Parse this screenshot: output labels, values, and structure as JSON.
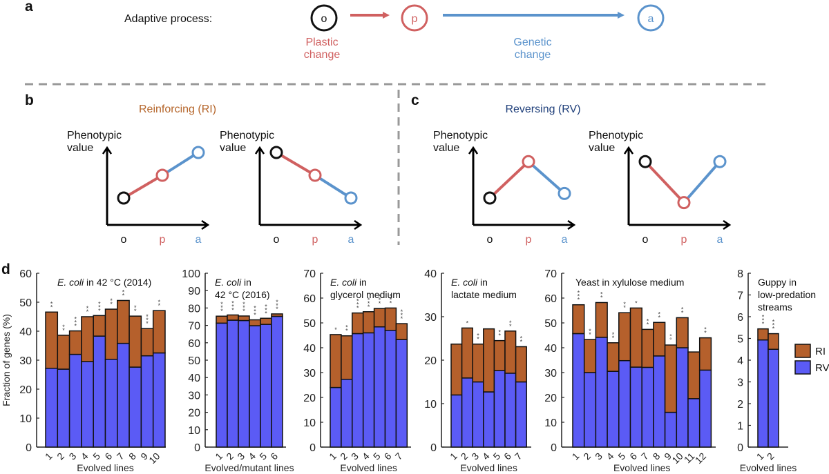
{
  "panel_a": {
    "label": "a",
    "title": "Adaptive process:",
    "nodes": [
      {
        "label": "o",
        "color": "#111111"
      },
      {
        "label": "p",
        "color": "#d06060"
      },
      {
        "label": "a",
        "color": "#5b93cc"
      }
    ],
    "plastic_change": [
      "Plastic",
      "change"
    ],
    "genetic_change": [
      "Genetic",
      "change"
    ]
  },
  "panel_b": {
    "label": "b",
    "title": "Reinforcing (RI)",
    "title_color": "#b5652a",
    "ylabel": [
      "Phenotypic",
      "value"
    ],
    "x_ticks": [
      "o",
      "p",
      "a"
    ],
    "plots": [
      {
        "name": "increasing",
        "values": [
          1,
          2,
          3
        ]
      },
      {
        "name": "decreasing",
        "values": [
          3,
          2,
          1
        ]
      }
    ]
  },
  "panel_c": {
    "label": "c",
    "title": "Reversing (RV)",
    "title_color": "#1f3f7a",
    "ylabel": [
      "Phenotypic",
      "value"
    ],
    "x_ticks": [
      "o",
      "p",
      "a"
    ],
    "plots": [
      {
        "name": "up-then-down",
        "values": [
          1,
          2.6,
          1.2
        ]
      },
      {
        "name": "down-then-up",
        "values": [
          2.6,
          0.8,
          2.6
        ]
      }
    ]
  },
  "panel_d": {
    "label": "d",
    "ylabel": "Fraction of genes (%)",
    "legend": [
      {
        "label": "RI",
        "color": "#b5602c"
      },
      {
        "label": "RV",
        "color": "#5b5bf5"
      }
    ],
    "legend_position": "right"
  },
  "chart_data": [
    {
      "type": "bar",
      "stacked": true,
      "title": "E. coli in 42 °C (2014)",
      "title_italic": "E. coli",
      "title_rest": " in 42 °C (2014)",
      "xlabel": "Evolved lines",
      "ylabel": "Fraction of genes (%)",
      "ylim": [
        0,
        60
      ],
      "yticks": [
        0,
        10,
        20,
        30,
        40,
        50,
        60
      ],
      "categories": [
        "1",
        "2",
        "3",
        "4",
        "5",
        "6",
        "7",
        "8",
        "9",
        "10"
      ],
      "series": [
        {
          "name": "RV",
          "values": [
            27.2,
            26.9,
            32.0,
            29.5,
            38.3,
            30.3,
            35.8,
            27.6,
            31.5,
            32.5
          ]
        },
        {
          "name": "RI",
          "values": [
            19.4,
            11.7,
            8.1,
            15.5,
            7.1,
            17.3,
            14.8,
            17.6,
            9.4,
            14.6
          ]
        }
      ],
      "significance": [
        "**",
        "**",
        "***",
        "**",
        "***",
        "**",
        "**",
        "**",
        "***",
        "**"
      ]
    },
    {
      "type": "bar",
      "stacked": true,
      "title": "E. coli in 42 °C (2016)",
      "title_italic": "E. coli",
      "title_rest": " in",
      "title_line2": "42 °C (2016)",
      "xlabel": "Evolved/mutant lines",
      "ylim": [
        0,
        100
      ],
      "yticks": [
        0,
        10,
        20,
        30,
        40,
        50,
        60,
        70,
        80,
        90,
        100
      ],
      "categories": [
        "1",
        "2",
        "3",
        "4",
        "5",
        "6"
      ],
      "series": [
        {
          "name": "RV",
          "values": [
            71.3,
            73.0,
            72.8,
            69.8,
            70.6,
            75.2
          ]
        },
        {
          "name": "RI",
          "values": [
            4.0,
            3.0,
            2.6,
            3.4,
            3.5,
            1.4
          ]
        }
      ],
      "significance": [
        "***",
        "***",
        "***",
        "***",
        "***",
        "***"
      ]
    },
    {
      "type": "bar",
      "stacked": true,
      "title": "E. coli in glycerol medium",
      "title_italic": "E. coli",
      "title_rest": " in",
      "title_line2": "glycerol medium",
      "xlabel": "Evolved lines",
      "ylim": [
        0,
        70
      ],
      "yticks": [
        0,
        10,
        20,
        30,
        40,
        50,
        60,
        70
      ],
      "categories": [
        "1",
        "2",
        "3",
        "4",
        "5",
        "6",
        "7"
      ],
      "series": [
        {
          "name": "RV",
          "values": [
            24.0,
            27.3,
            45.7,
            46.0,
            48.4,
            47.0,
            43.3
          ]
        },
        {
          "name": "RI",
          "values": [
            21.3,
            17.5,
            8.3,
            8.5,
            7.4,
            9.0,
            6.4
          ]
        }
      ],
      "significance": [
        "*",
        "**",
        "***",
        "***",
        "***",
        "***",
        "***"
      ]
    },
    {
      "type": "bar",
      "stacked": true,
      "title": "E. coli in lactate medium",
      "title_italic": "E. coli",
      "title_rest": " in",
      "title_line2": "lactate medium",
      "xlabel": "Evolved lines",
      "ylim": [
        0,
        40
      ],
      "yticks": [
        0,
        10,
        20,
        30,
        40
      ],
      "categories": [
        "1",
        "2",
        "3",
        "4",
        "5",
        "6",
        "7"
      ],
      "series": [
        {
          "name": "RV",
          "values": [
            12.0,
            15.9,
            15.0,
            12.7,
            17.6,
            17.0,
            15.0
          ]
        },
        {
          "name": "RI",
          "values": [
            11.7,
            11.5,
            8.7,
            14.5,
            6.9,
            9.7,
            8.1
          ]
        }
      ],
      "significance": [
        "",
        "*",
        "**",
        "",
        "**",
        "**",
        "**"
      ]
    },
    {
      "type": "bar",
      "stacked": true,
      "title": "Yeast in xylulose medium",
      "title_italic": "",
      "title_rest": "Yeast in xylulose medium",
      "xlabel": "Evolved lines",
      "ylim": [
        0,
        70
      ],
      "yticks": [
        0,
        10,
        20,
        30,
        40,
        50,
        60,
        70
      ],
      "categories": [
        "1",
        "2",
        "3",
        "4",
        "5",
        "6",
        "7",
        "8",
        "9",
        "10",
        "11",
        "12"
      ],
      "series": [
        {
          "name": "RV",
          "values": [
            45.7,
            30.0,
            44.2,
            30.5,
            34.8,
            32.2,
            32.1,
            36.7,
            14.0,
            40.0,
            19.5,
            31.0
          ]
        },
        {
          "name": "RI",
          "values": [
            11.6,
            13.3,
            14.0,
            11.5,
            19.3,
            23.8,
            15.3,
            13.5,
            27.1,
            12.1,
            18.8,
            13.0
          ]
        }
      ],
      "significance": [
        "***",
        "**",
        "**",
        "**",
        "**",
        "*",
        "**",
        "**",
        "oo",
        "**",
        "",
        "**"
      ]
    },
    {
      "type": "bar",
      "stacked": true,
      "title": "Guppy in low-predation streams",
      "title_italic": "",
      "title_rest": "Guppy in",
      "title_line2": "low-predation",
      "title_line3": "streams",
      "xlabel": "Evolved lines",
      "ylim": [
        0,
        8
      ],
      "yticks": [
        0,
        1,
        2,
        3,
        4,
        5,
        6,
        7,
        8
      ],
      "categories": [
        "1",
        "2"
      ],
      "series": [
        {
          "name": "RV",
          "values": [
            4.93,
            4.5
          ]
        },
        {
          "name": "RI",
          "values": [
            0.51,
            0.72
          ]
        }
      ],
      "significance": [
        "***",
        "***"
      ]
    }
  ]
}
